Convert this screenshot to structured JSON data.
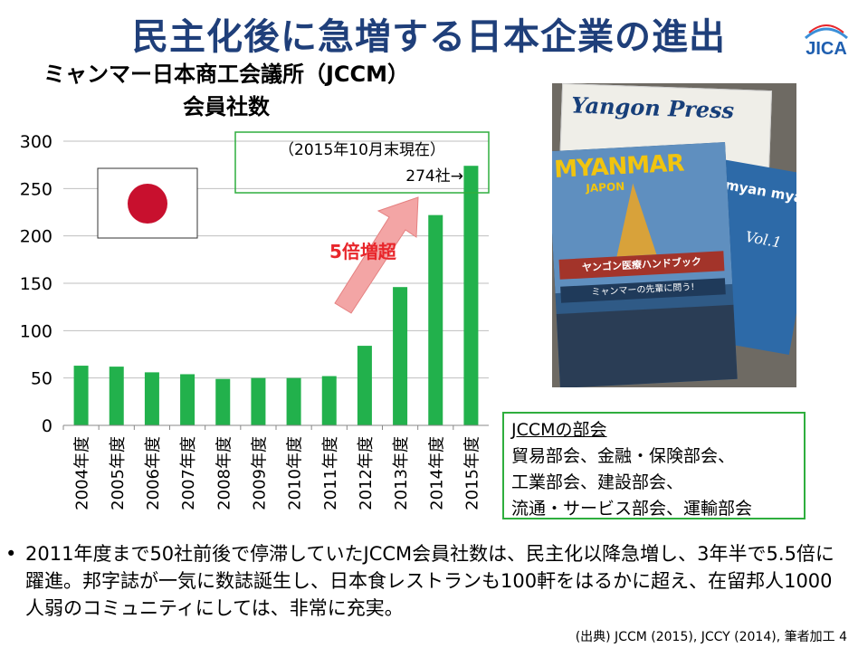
{
  "slide": {
    "title": "民主化後に急増する日本企業の進出",
    "logo_text": "JICA",
    "page_number": "4"
  },
  "chart_title": {
    "line1": "ミャンマー日本商工会議所（JCCM）",
    "line2": "会員社数"
  },
  "chart_data": {
    "type": "bar",
    "categories": [
      "2004年度",
      "2005年度",
      "2006年度",
      "2007年度",
      "2008年度",
      "2009年度",
      "2010年度",
      "2011年度",
      "2012年度",
      "2013年度",
      "2014年度",
      "2015年度"
    ],
    "values": [
      63,
      62,
      56,
      54,
      49,
      50,
      50,
      52,
      84,
      146,
      222,
      274
    ],
    "ylim": [
      0,
      300
    ],
    "yticks": [
      "0",
      "50",
      "100",
      "150",
      "200",
      "250",
      "300"
    ],
    "grid": true,
    "bar_color": "#22b14c",
    "annotation_line1": "（2015年10月末現在）",
    "annotation_line2": "274社→",
    "arrow_label": "5倍増超",
    "arrow_label_color": "#e8262b",
    "flag": "japan-flag"
  },
  "photo": {
    "magazine_back_title": "Yangon Press",
    "magazine_front_title": "MYANMAR",
    "magazine_front_sub": "JAPON",
    "magazine_front_band": "ヤンゴン医療ハンドブック",
    "magazine_front_band2": "ミャンマーの先輩に問う!",
    "magazine_right_title": "myan myan",
    "magazine_right_vol": "Vol.1"
  },
  "divisions": {
    "heading": "JCCMの部会",
    "lines": [
      "貿易部会、金融・保険部会、",
      "工業部会、建設部会、",
      "流通・サービス部会、運輸部会"
    ]
  },
  "bullet": {
    "text": "2011年度まで50社前後で停滞していたJCCM会員社数は、民主化以降急増し、3年半で5.5倍に躍進。邦字誌が一気に数誌誕生し、日本食レストランも100軒をはるかに超え、在留邦人1000人弱のコミュニティにしては、非常に充実。"
  },
  "footer": {
    "source": "(出典) JCCM (2015), JCCY (2014), 筆者加工"
  }
}
